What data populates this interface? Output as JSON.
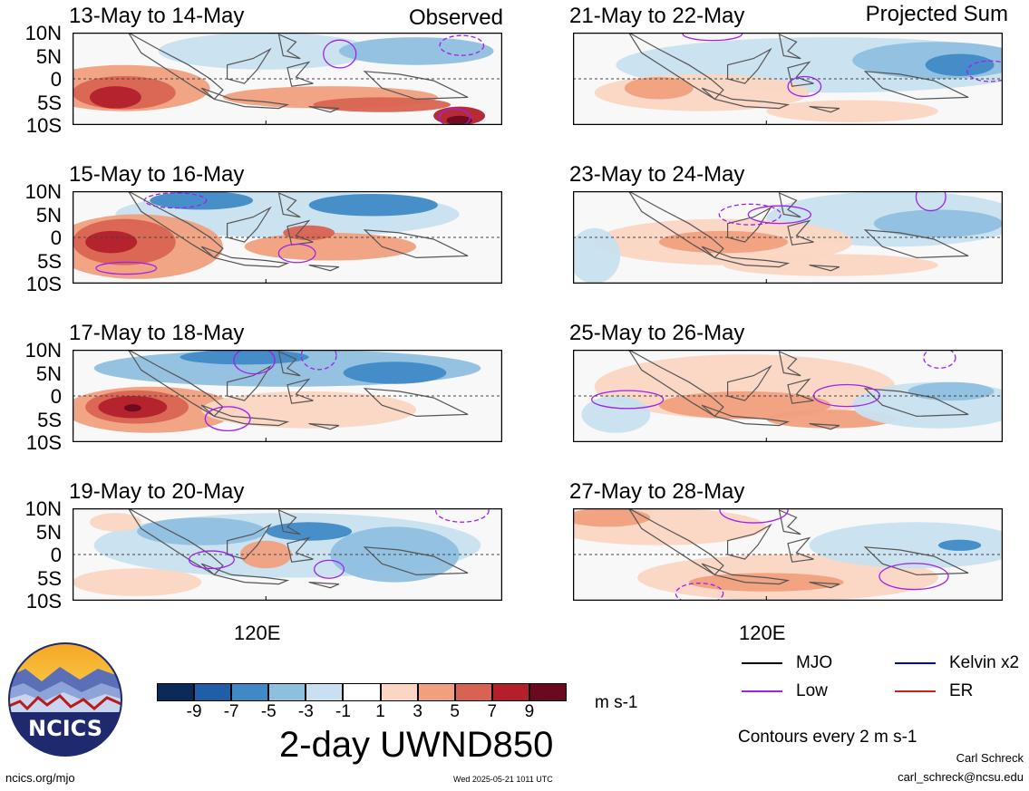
{
  "figure": {
    "left_label": "Observed",
    "right_label": "Projected Sum",
    "main_title": "2-day UWND850",
    "units": "m s-1",
    "x_tick": "120E",
    "y_ticks": [
      "10N",
      "5N",
      "0",
      "5S",
      "10S"
    ],
    "contour_note": "Contours every 2 m s-1",
    "author": "Carl Schreck",
    "email": "carl_schreck@ncsu.edu",
    "url": "ncics.org/mjo",
    "timestamp": "Wed 2025-05-21 1011 UTC",
    "logo_text": "NCICS"
  },
  "panels_observed": [
    {
      "title": "13-May to 14-May"
    },
    {
      "title": "15-May to 16-May"
    },
    {
      "title": "17-May to 18-May"
    },
    {
      "title": "19-May to 20-May"
    }
  ],
  "panels_projected": [
    {
      "title": "21-May to 22-May"
    },
    {
      "title": "23-May to 24-May"
    },
    {
      "title": "25-May to 26-May"
    },
    {
      "title": "27-May to 28-May"
    }
  ],
  "colorbar": {
    "colors": [
      "#0a2a5a",
      "#1e5fa8",
      "#3f8ac6",
      "#8fbfdf",
      "#c8e0ef",
      "#ffffff",
      "#fbd6c2",
      "#f0a07e",
      "#d96352",
      "#b3202c",
      "#6b0a1f"
    ],
    "labels": [
      "-9",
      "-7",
      "-5",
      "-3",
      "-1",
      "1",
      "3",
      "5",
      "7",
      "9"
    ]
  },
  "legend": [
    {
      "label": "MJO",
      "color": "#000000"
    },
    {
      "label": "Kelvin x2",
      "color": "#0000cc"
    },
    {
      "label": "Low",
      "color": "#a020f0"
    },
    {
      "label": "ER",
      "color": "#cc2020"
    }
  ]
}
